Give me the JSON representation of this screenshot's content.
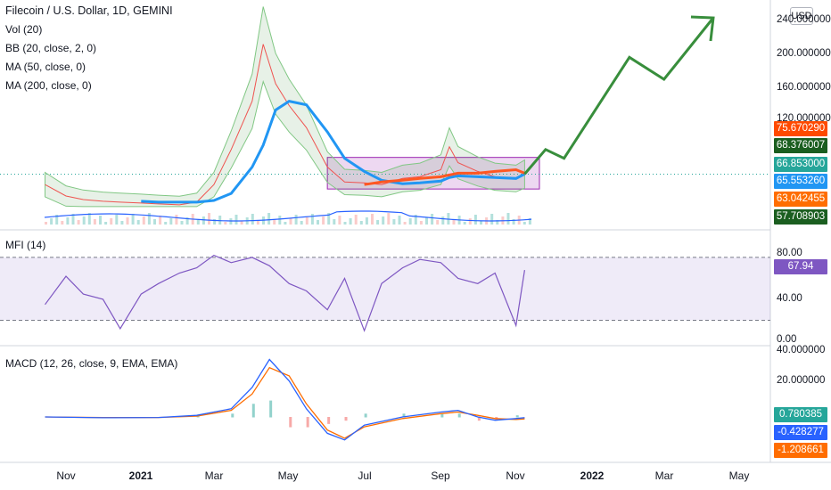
{
  "chart_data": [
    {
      "type": "line",
      "title": "Filecoin / U.S. Dollar, 1D, GEMINI",
      "indicators": [
        "Vol (20)",
        "BB (20, close, 2, 0)",
        "MA (50, close, 0)",
        "MA (200, close, 0)"
      ],
      "currency_button": "USD",
      "y_ticks": [
        "240.000000",
        "200.000000",
        "160.000000",
        "120.000000"
      ],
      "ylim": [
        40,
        245
      ],
      "x_ticks": [
        "Nov",
        "2021",
        "Mar",
        "May",
        "Jul",
        "Sep",
        "Nov",
        "2022",
        "Mar",
        "May"
      ],
      "x": [
        "2020-10-15",
        "2020-11-01",
        "2020-11-15",
        "2020-12-01",
        "2020-12-15",
        "2021-01-01",
        "2021-01-15",
        "2021-02-01",
        "2021-02-15",
        "2021-03-01",
        "2021-03-15",
        "2021-04-01",
        "2021-04-10",
        "2021-04-20",
        "2021-05-01",
        "2021-05-15",
        "2021-06-01",
        "2021-06-15",
        "2021-07-01",
        "2021-07-15",
        "2021-08-01",
        "2021-08-15",
        "2021-09-01",
        "2021-09-08",
        "2021-09-15",
        "2021-10-01",
        "2021-10-15",
        "2021-11-01",
        "2021-11-08"
      ],
      "series": [
        {
          "name": "",
          "values": [
            55,
            42,
            38,
            36,
            35,
            34,
            33,
            32,
            35,
            55,
            95,
            150,
            215,
            170,
            145,
            120,
            75,
            58,
            57,
            55,
            62,
            64,
            72,
            98,
            80,
            70,
            64,
            62,
            67
          ]
        },
        {
          "name": "MA (50, close, 0)",
          "values": [
            null,
            null,
            null,
            null,
            null,
            36,
            35,
            35,
            35,
            37,
            45,
            75,
            100,
            140,
            150,
            146,
            115,
            85,
            70,
            60,
            56,
            57,
            59,
            63,
            65,
            64,
            63,
            62,
            67
          ]
        },
        {
          "name": "MA (200, close, 0)",
          "values": [
            null,
            null,
            null,
            null,
            null,
            null,
            null,
            null,
            null,
            null,
            null,
            null,
            null,
            null,
            null,
            null,
            null,
            null,
            55,
            58,
            60,
            62,
            64,
            66,
            68,
            68,
            70,
            72,
            68
          ]
        }
      ],
      "projection": {
        "x": [
          "2021-11-08",
          "2021-11-25",
          "2021-12-10",
          "2022-02-01",
          "2022-03-01",
          "2022-04-10"
        ],
        "values": [
          67,
          95,
          85,
          200,
          175,
          245
        ]
      },
      "accumulation_zone": {
        "x_start": "2021-06-01",
        "x_end": "2021-11-20",
        "y_low": 50,
        "y_high": 86
      },
      "price_tags": [
        {
          "label": "75.670290",
          "color": "#ff4a00"
        },
        {
          "label": "68.376007",
          "color": "#1b5e20"
        },
        {
          "label": "66.853000",
          "color": "#26a69a"
        },
        {
          "label": "65.553260",
          "color": "#2196f3"
        },
        {
          "label": "63.042455",
          "color": "#ff6d00"
        },
        {
          "label": "57.708903",
          "color": "#1b5e20"
        }
      ]
    },
    {
      "type": "line",
      "title": "MFI (14)",
      "y_ticks": [
        "80.00",
        "40.00",
        "0.00"
      ],
      "ylim": [
        0,
        85
      ],
      "bands": [
        20,
        80
      ],
      "current_label": "67.94",
      "x": [
        "2020-10-15",
        "2020-11-01",
        "2020-11-15",
        "2020-12-01",
        "2020-12-15",
        "2021-01-01",
        "2021-01-15",
        "2021-02-01",
        "2021-02-15",
        "2021-03-01",
        "2021-03-15",
        "2021-04-01",
        "2021-04-15",
        "2021-05-01",
        "2021-05-15",
        "2021-06-01",
        "2021-06-15",
        "2021-07-01",
        "2021-07-15",
        "2021-08-01",
        "2021-08-15",
        "2021-09-01",
        "2021-09-15",
        "2021-10-01",
        "2021-10-15",
        "2021-11-01",
        "2021-11-08"
      ],
      "values": [
        35,
        62,
        45,
        40,
        12,
        45,
        55,
        65,
        70,
        82,
        75,
        80,
        72,
        55,
        48,
        30,
        60,
        10,
        55,
        70,
        78,
        75,
        60,
        55,
        65,
        15,
        67.94
      ]
    },
    {
      "type": "line",
      "title": "MACD (12, 26, close, 9, EMA, EMA)",
      "y_ticks": [
        "40.000000",
        "20.000000"
      ],
      "ylim": [
        -16,
        42
      ],
      "tags": [
        {
          "label": "0.780385",
          "color": "#26a69a"
        },
        {
          "label": "-0.428277",
          "color": "#2962ff"
        },
        {
          "label": "-1.208661",
          "color": "#ff6d00"
        }
      ],
      "x": [
        "2020-10-15",
        "2020-12-01",
        "2021-01-15",
        "2021-02-15",
        "2021-03-15",
        "2021-04-01",
        "2021-04-15",
        "2021-05-01",
        "2021-05-15",
        "2021-06-01",
        "2021-06-15",
        "2021-07-01",
        "2021-08-01",
        "2021-09-01",
        "2021-09-15",
        "2021-10-01",
        "2021-10-15",
        "2021-11-01",
        "2021-11-08"
      ],
      "series": [
        {
          "name": "",
          "values": [
            0,
            -0.5,
            -0.3,
            1,
            5,
            18,
            35,
            22,
            5,
            -10,
            -14,
            -5,
            0,
            3,
            4,
            0,
            -2,
            -1,
            -0.43
          ]
        },
        {
          "name": "",
          "values": [
            0,
            -0.4,
            -0.3,
            0.5,
            4,
            14,
            30,
            25,
            8,
            -8,
            -13,
            -6,
            -1,
            2,
            3,
            1,
            -1,
            -1.5,
            -1.21
          ]
        }
      ]
    }
  ]
}
